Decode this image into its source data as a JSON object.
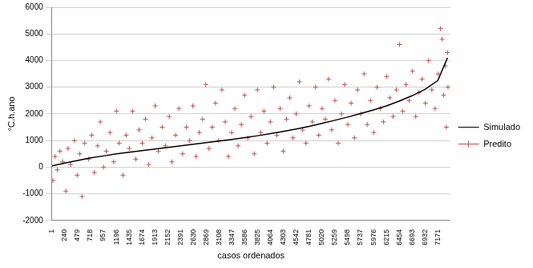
{
  "chart_data": {
    "type": "scatter",
    "x_label": "casos ordenados",
    "y_label": "°C.h.ano",
    "xlim": [
      1,
      7400
    ],
    "xticks": [
      1,
      240,
      479,
      718,
      957,
      1196,
      1435,
      1674,
      1913,
      2152,
      2391,
      2630,
      2869,
      3108,
      3347,
      3586,
      3825,
      4064,
      4303,
      4542,
      4781,
      5020,
      5259,
      5498,
      5737,
      5976,
      6215,
      6454,
      6693,
      6932,
      7171
    ],
    "ylim": [
      -2000,
      6000
    ],
    "yticks": [
      -2000,
      -1000,
      0,
      1000,
      2000,
      3000,
      4000,
      5000,
      6000
    ],
    "grid": true,
    "legend": "right",
    "series": [
      {
        "name": "Simulado",
        "type": "line",
        "color": "#000000",
        "marker": "none",
        "line_style": "solid",
        "x": [
          1,
          240,
          479,
          718,
          957,
          1196,
          1435,
          1674,
          1913,
          2152,
          2391,
          2630,
          2869,
          3108,
          3347,
          3586,
          3825,
          4064,
          4303,
          4542,
          4781,
          5020,
          5259,
          5498,
          5737,
          5976,
          6215,
          6454,
          6693,
          6932,
          7171,
          7350
        ],
        "values": [
          50,
          150,
          250,
          350,
          420,
          500,
          560,
          620,
          680,
          740,
          800,
          860,
          920,
          980,
          1040,
          1110,
          1180,
          1260,
          1340,
          1430,
          1530,
          1640,
          1760,
          1880,
          2010,
          2150,
          2300,
          2480,
          2680,
          2920,
          3250,
          4100
        ]
      },
      {
        "name": "Predito",
        "type": "scatter",
        "color": "#c0504d",
        "marker": "cross",
        "x": [
          20,
          60,
          100,
          150,
          200,
          260,
          300,
          350,
          420,
          470,
          520,
          560,
          610,
          680,
          740,
          790,
          850,
          900,
          960,
          1010,
          1080,
          1150,
          1200,
          1250,
          1320,
          1380,
          1440,
          1500,
          1560,
          1620,
          1680,
          1740,
          1800,
          1860,
          1920,
          1980,
          2050,
          2110,
          2180,
          2230,
          2300,
          2360,
          2430,
          2500,
          2560,
          2620,
          2680,
          2740,
          2800,
          2860,
          2920,
          2980,
          3040,
          3100,
          3160,
          3220,
          3280,
          3340,
          3400,
          3460,
          3520,
          3580,
          3640,
          3700,
          3760,
          3820,
          3880,
          3940,
          4000,
          4060,
          4120,
          4180,
          4240,
          4300,
          4360,
          4420,
          4480,
          4540,
          4600,
          4660,
          4720,
          4780,
          4840,
          4900,
          4960,
          5020,
          5080,
          5140,
          5200,
          5260,
          5320,
          5380,
          5440,
          5500,
          5560,
          5620,
          5680,
          5740,
          5800,
          5860,
          5920,
          5980,
          6040,
          6100,
          6160,
          6220,
          6280,
          6340,
          6400,
          6460,
          6520,
          6580,
          6640,
          6700,
          6760,
          6820,
          6880,
          6940,
          7000,
          7060,
          7120,
          7180,
          7220,
          7250,
          7280,
          7310,
          7330,
          7350,
          7360
        ],
        "values": [
          -500,
          400,
          -100,
          600,
          200,
          -900,
          700,
          100,
          1000,
          -300,
          500,
          -1100,
          900,
          300,
          1200,
          -200,
          800,
          1700,
          0,
          600,
          1300,
          200,
          2100,
          900,
          -300,
          1200,
          700,
          2100,
          300,
          1400,
          900,
          1800,
          100,
          1100,
          2300,
          600,
          1500,
          800,
          1900,
          200,
          1200,
          2200,
          500,
          1500,
          1000,
          2300,
          400,
          1300,
          1800,
          3100,
          700,
          1500,
          2400,
          1000,
          2900,
          1700,
          400,
          1300,
          2200,
          800,
          1600,
          2700,
          1100,
          1900,
          500,
          2900,
          1300,
          2100,
          900,
          1700,
          3000,
          1200,
          2200,
          600,
          1800,
          2600,
          1100,
          2000,
          3200,
          1400,
          900,
          2300,
          1700,
          3000,
          1200,
          2200,
          1800,
          3300,
          1400,
          2500,
          900,
          2000,
          3100,
          1600,
          2400,
          1100,
          2900,
          2000,
          3500,
          1600,
          2500,
          1300,
          3000,
          2200,
          1700,
          3400,
          2600,
          1900,
          2900,
          4600,
          2100,
          3100,
          2500,
          3600,
          1900,
          2800,
          3300,
          2400,
          4000,
          2900,
          2200,
          3500,
          5200,
          4800,
          2700,
          3800,
          1500,
          4300,
          3000
        ]
      }
    ]
  }
}
